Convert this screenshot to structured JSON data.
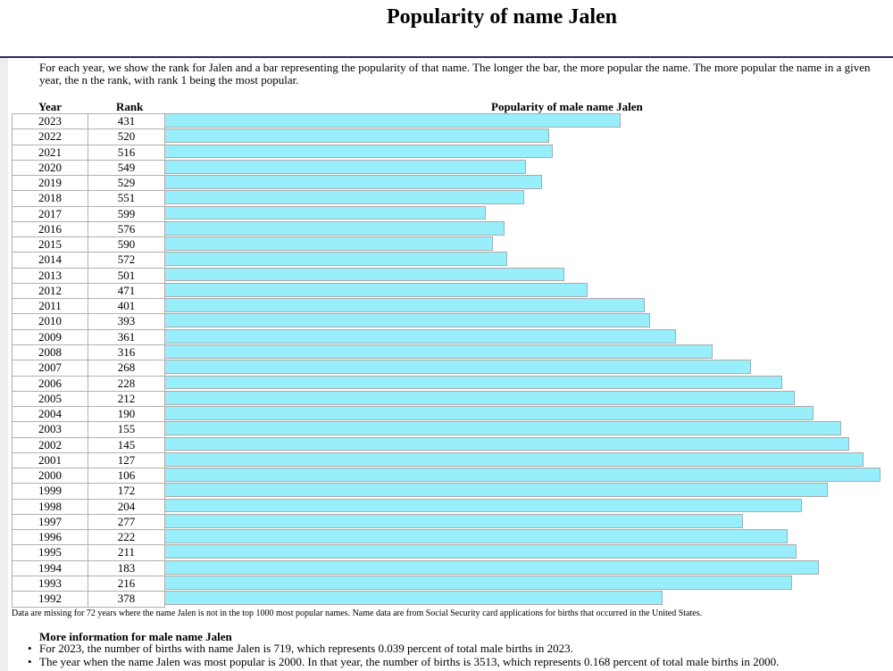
{
  "title": "Popularity of name Jalen",
  "intro": "For each year, we show the rank for Jalen and a bar representing the popularity of that name. The longer the bar, the more popular the name. The more popular the name in a given year, the n the rank, with rank 1 being the most popular.",
  "table": {
    "headers": {
      "year": "Year",
      "rank": "Rank",
      "bar": "Popularity of male name Jalen"
    },
    "bar_color": "#99eefc",
    "rows": [
      {
        "year": "2023",
        "rank": "431",
        "popularity_pct": 63.7
      },
      {
        "year": "2022",
        "rank": "520",
        "popularity_pct": 53.7
      },
      {
        "year": "2021",
        "rank": "516",
        "popularity_pct": 54.2
      },
      {
        "year": "2020",
        "rank": "549",
        "popularity_pct": 50.5
      },
      {
        "year": "2019",
        "rank": "529",
        "popularity_pct": 52.7
      },
      {
        "year": "2018",
        "rank": "551",
        "popularity_pct": 50.2
      },
      {
        "year": "2017",
        "rank": "599",
        "popularity_pct": 44.9
      },
      {
        "year": "2016",
        "rank": "576",
        "popularity_pct": 47.5
      },
      {
        "year": "2015",
        "rank": "590",
        "popularity_pct": 45.9
      },
      {
        "year": "2014",
        "rank": "572",
        "popularity_pct": 47.9
      },
      {
        "year": "2013",
        "rank": "501",
        "popularity_pct": 55.9
      },
      {
        "year": "2012",
        "rank": "471",
        "popularity_pct": 59.1
      },
      {
        "year": "2011",
        "rank": "401",
        "popularity_pct": 67.1
      },
      {
        "year": "2010",
        "rank": "393",
        "popularity_pct": 67.8
      },
      {
        "year": "2009",
        "rank": "361",
        "popularity_pct": 71.4
      },
      {
        "year": "2008",
        "rank": "316",
        "popularity_pct": 76.6
      },
      {
        "year": "2007",
        "rank": "268",
        "popularity_pct": 81.9
      },
      {
        "year": "2006",
        "rank": "228",
        "popularity_pct": 86.3
      },
      {
        "year": "2005",
        "rank": "212",
        "popularity_pct": 88.0
      },
      {
        "year": "2004",
        "rank": "190",
        "popularity_pct": 90.6
      },
      {
        "year": "2003",
        "rank": "155",
        "popularity_pct": 94.5
      },
      {
        "year": "2002",
        "rank": "145",
        "popularity_pct": 95.6
      },
      {
        "year": "2001",
        "rank": "127",
        "popularity_pct": 97.6
      },
      {
        "year": "2000",
        "rank": "106",
        "popularity_pct": 100
      },
      {
        "year": "1999",
        "rank": "172",
        "popularity_pct": 92.6
      },
      {
        "year": "1998",
        "rank": "204",
        "popularity_pct": 89.0
      },
      {
        "year": "1997",
        "rank": "277",
        "popularity_pct": 80.8
      },
      {
        "year": "1996",
        "rank": "222",
        "popularity_pct": 87.0
      },
      {
        "year": "1995",
        "rank": "211",
        "popularity_pct": 88.3
      },
      {
        "year": "1994",
        "rank": "183",
        "popularity_pct": 91.4
      },
      {
        "year": "1993",
        "rank": "216",
        "popularity_pct": 87.7
      },
      {
        "year": "1992",
        "rank": "378",
        "popularity_pct": 69.6
      }
    ]
  },
  "note": "Data are missing for 72 years where the name Jalen is not in the top 1000 most popular names. Name data are from Social Security card applications for births that occurred in the United States.",
  "more_info": {
    "heading": "More information for male name Jalen",
    "items": [
      "For 2023, the number of births with name Jalen is 719, which represents 0.039 percent of total male births in 2023.",
      "The year when the name Jalen was most popular is 2000. In that year, the number of births is 3513, which represents 0.168 percent of total male births in 2000."
    ]
  }
}
